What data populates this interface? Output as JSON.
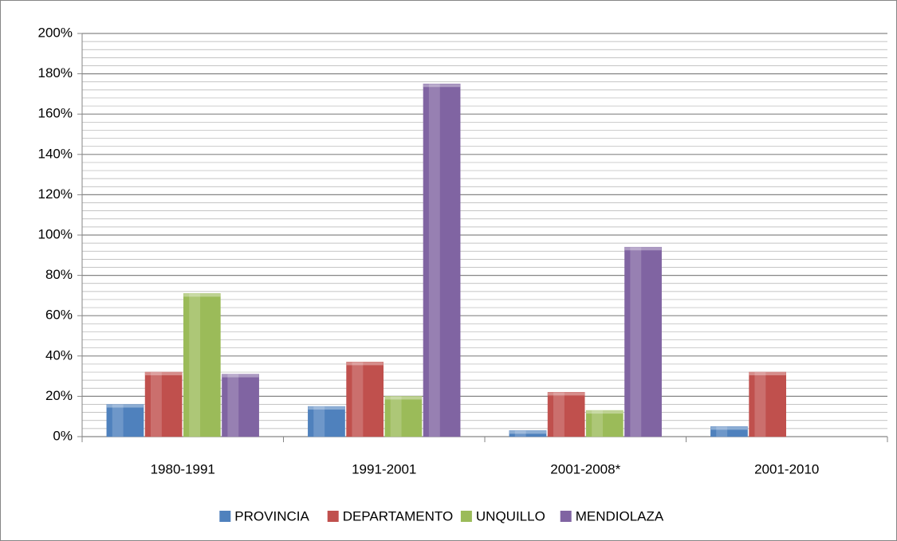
{
  "chart_data": {
    "type": "bar",
    "categories": [
      "1980-1991",
      "1991-2001",
      "2001-2008*",
      "2001-2010"
    ],
    "series": [
      {
        "name": "PROVINCIA",
        "color": "#4f81bd",
        "values": [
          16,
          15,
          3,
          5
        ]
      },
      {
        "name": "DEPARTAMENTO",
        "color": "#c0504d",
        "values": [
          32,
          37,
          22,
          32
        ]
      },
      {
        "name": "UNQUILLO",
        "color": "#9bbb59",
        "values": [
          71,
          20,
          13,
          null
        ]
      },
      {
        "name": "MENDIOLAZA",
        "color": "#8064a2",
        "values": [
          31,
          175,
          94,
          null
        ]
      }
    ],
    "ylim": [
      0,
      200
    ],
    "yticks": [
      {
        "value": 0,
        "label": "0%"
      },
      {
        "value": 20,
        "label": "20%"
      },
      {
        "value": 40,
        "label": "40%"
      },
      {
        "value": 60,
        "label": "60%"
      },
      {
        "value": 80,
        "label": "80%"
      },
      {
        "value": 100,
        "label": "100%"
      },
      {
        "value": 120,
        "label": "120%"
      },
      {
        "value": 140,
        "label": "140%"
      },
      {
        "value": 160,
        "label": "160%"
      },
      {
        "value": 180,
        "label": "180%"
      },
      {
        "value": 200,
        "label": "200%"
      }
    ],
    "minor_yticks": [
      4,
      8,
      12,
      16,
      24,
      28,
      32,
      36,
      44,
      48,
      52,
      56,
      64,
      68,
      72,
      76,
      84,
      88,
      92,
      96,
      104,
      108,
      112,
      116,
      124,
      128,
      132,
      136,
      144,
      148,
      152,
      156,
      164,
      168,
      172,
      176,
      184,
      188,
      192,
      196
    ],
    "grid": true,
    "legend": "bottom"
  }
}
